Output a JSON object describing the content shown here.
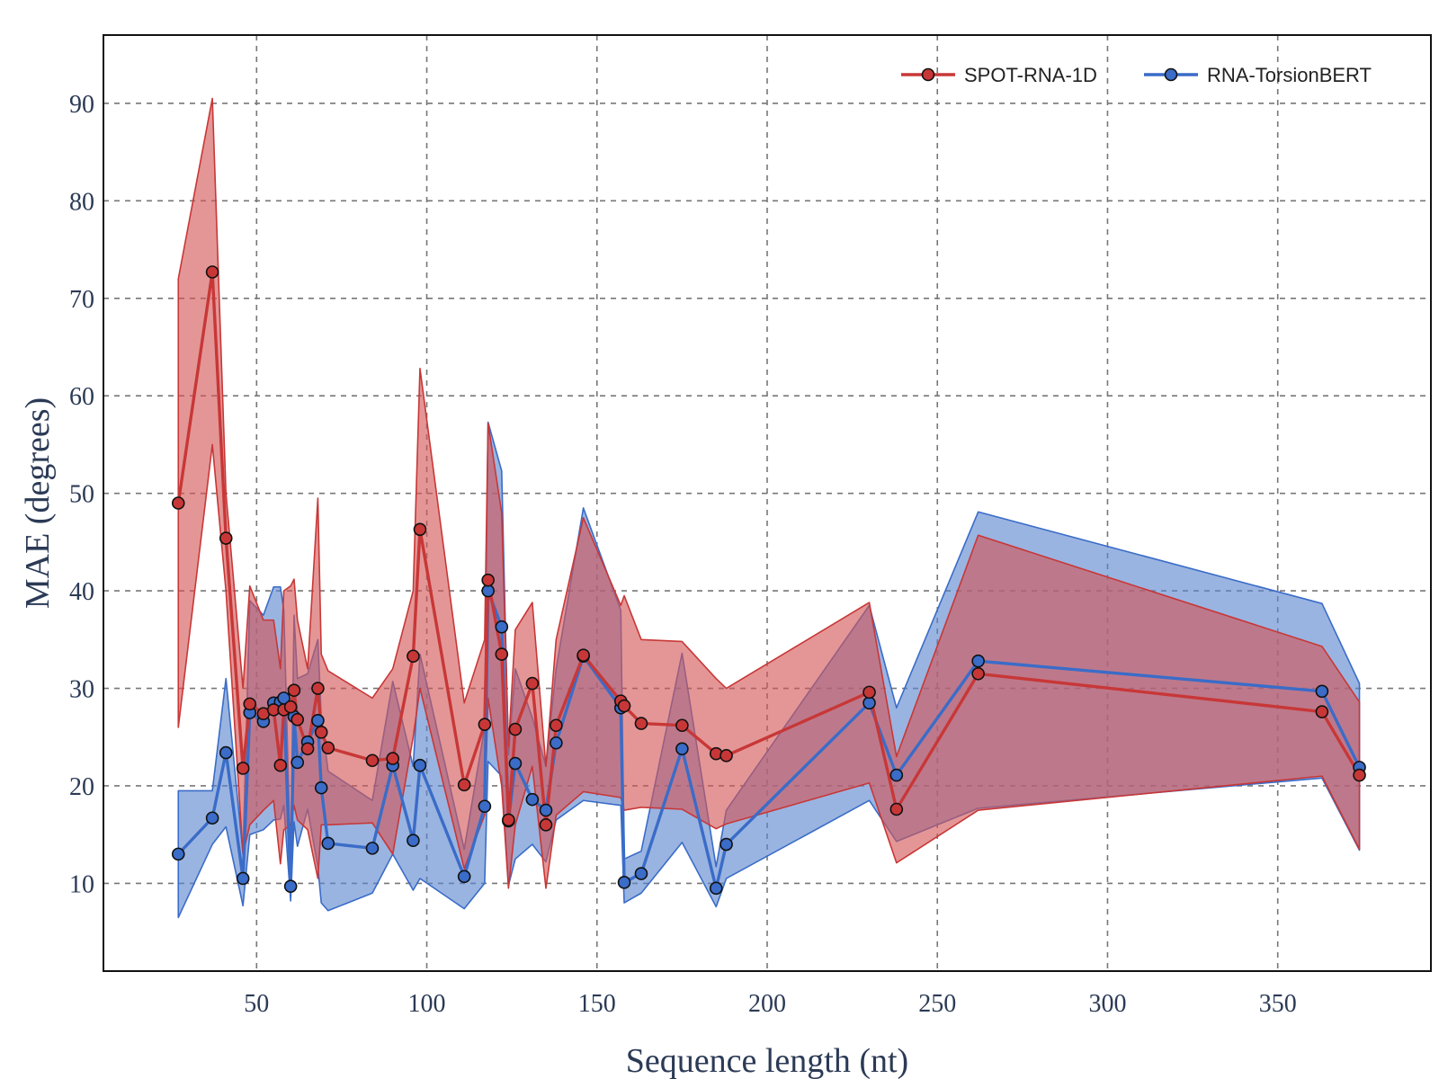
{
  "chart_data": {
    "type": "line",
    "xlabel": "Sequence length (nt)",
    "ylabel": "MAE (degrees)",
    "xlim": [
      5,
      395
    ],
    "ylim": [
      1,
      97
    ],
    "xticks": [
      50,
      100,
      150,
      200,
      250,
      300,
      350
    ],
    "yticks": [
      10,
      20,
      30,
      40,
      50,
      60,
      70,
      80,
      90
    ],
    "grid": true,
    "legend_position": "top-right",
    "x": [
      27,
      37,
      41,
      46,
      48,
      52,
      55,
      57,
      58,
      60,
      61,
      62,
      65,
      68,
      69,
      71,
      84,
      90,
      96,
      98,
      111,
      117,
      118,
      122,
      124,
      126,
      131,
      135,
      138,
      146,
      157,
      158,
      163,
      175,
      185,
      188,
      230,
      238,
      262,
      363,
      374
    ],
    "series": [
      {
        "name": "SPOT-RNA-1D",
        "color": "#c83737",
        "band_color": "#d45555",
        "values": [
          49.0,
          72.7,
          45.4,
          21.8,
          28.4,
          27.4,
          27.8,
          22.1,
          27.8,
          28.1,
          29.8,
          26.8,
          23.8,
          30.0,
          25.5,
          23.9,
          22.6,
          22.8,
          33.3,
          46.3,
          20.1,
          26.3,
          41.1,
          33.5,
          16.5,
          25.8,
          30.5,
          16.0,
          26.2,
          33.4,
          28.7,
          28.2,
          26.4,
          26.2,
          23.3,
          23.1,
          29.6,
          17.6,
          31.5,
          27.6,
          21.1
        ],
        "upper": [
          72.0,
          90.5,
          50.0,
          30.0,
          40.5,
          37.0,
          37.0,
          32.0,
          40.0,
          40.5,
          41.2,
          37.0,
          32.0,
          49.5,
          33.5,
          31.8,
          29.0,
          32.0,
          40.0,
          62.8,
          28.5,
          35.0,
          57.2,
          48.0,
          24.0,
          36.0,
          38.8,
          22.0,
          35.0,
          47.5,
          38.5,
          39.5,
          35.0,
          34.8,
          31.0,
          30.0,
          38.8,
          23.0,
          45.7,
          34.3,
          28.6
        ],
        "lower": [
          26.0,
          55.0,
          40.0,
          13.0,
          16.0,
          17.5,
          18.5,
          12.0,
          15.5,
          16.0,
          18.0,
          16.5,
          15.5,
          10.5,
          16.0,
          16.0,
          16.2,
          13.0,
          25.0,
          30.0,
          11.5,
          17.0,
          29.0,
          20.0,
          9.5,
          16.0,
          22.0,
          9.5,
          17.0,
          19.4,
          18.8,
          17.5,
          17.8,
          17.6,
          15.6,
          16.1,
          20.3,
          12.1,
          17.5,
          21.0,
          13.5
        ]
      },
      {
        "name": "RNA-TorsionBERT",
        "color": "#3a6cc8",
        "band_color": "#5c86cf",
        "values": [
          13.0,
          16.7,
          23.4,
          10.5,
          27.5,
          26.6,
          28.5,
          28.6,
          29.0,
          9.7,
          27.1,
          22.4,
          24.5,
          26.7,
          19.8,
          14.1,
          13.6,
          22.1,
          14.4,
          22.1,
          10.7,
          17.9,
          40.0,
          36.3,
          16.4,
          22.3,
          18.6,
          17.5,
          24.4,
          33.3,
          28.0,
          10.1,
          11.0,
          23.8,
          9.5,
          14.0,
          28.5,
          21.1,
          32.8,
          29.7,
          21.9
        ],
        "upper": [
          19.5,
          19.5,
          31.0,
          13.0,
          39.0,
          37.5,
          40.4,
          40.4,
          38.0,
          12.0,
          37.5,
          31.0,
          31.5,
          35.0,
          27.0,
          21.5,
          18.5,
          30.7,
          22.0,
          33.5,
          13.5,
          26.0,
          57.3,
          52.3,
          23.2,
          32.0,
          27.0,
          22.0,
          32.0,
          48.5,
          38.0,
          12.5,
          13.3,
          33.6,
          11.7,
          17.5,
          38.5,
          28.0,
          48.1,
          38.7,
          30.5
        ],
        "lower": [
          6.5,
          14.0,
          15.8,
          7.7,
          15.0,
          15.5,
          16.5,
          16.6,
          18.0,
          8.2,
          16.3,
          13.8,
          17.6,
          11.7,
          8.0,
          7.2,
          9.0,
          13.0,
          9.3,
          10.5,
          7.4,
          10.0,
          22.5,
          21.0,
          9.8,
          12.5,
          14.0,
          12.2,
          16.5,
          18.5,
          18.0,
          8.0,
          9.0,
          14.2,
          7.6,
          10.5,
          18.5,
          14.3,
          17.7,
          20.8,
          13.4
        ]
      }
    ]
  }
}
